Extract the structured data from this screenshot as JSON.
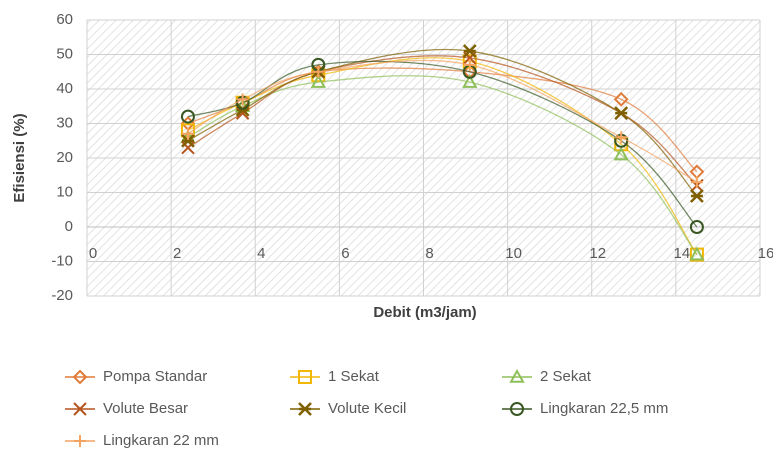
{
  "chart_data": {
    "type": "line",
    "x_label": "Debit (m3/jam)",
    "y_label": "Efisiensi (%)",
    "x": [
      2.4,
      3.7,
      5.5,
      9.1,
      12.7,
      14.5
    ],
    "xlim": [
      0,
      16
    ],
    "xticks": [
      0,
      2,
      4,
      6,
      8,
      10,
      12,
      14,
      16
    ],
    "ylim": [
      -20,
      60
    ],
    "yticks": [
      -20,
      -10,
      0,
      10,
      20,
      30,
      40,
      50,
      60
    ],
    "grid": true,
    "legend": "bottom",
    "series": [
      {
        "name": "Pompa Standar",
        "color": "#e07b39",
        "marker": "diamond",
        "values": [
          30,
          36,
          45,
          45,
          37,
          16
        ]
      },
      {
        "name": "1 Sekat",
        "color": "#f2b705",
        "marker": "square",
        "values": [
          28,
          36,
          44,
          48,
          24,
          -8
        ]
      },
      {
        "name": "2 Sekat",
        "color": "#8fbf5a",
        "marker": "triangle",
        "values": [
          26,
          35,
          42,
          42,
          21,
          -8
        ]
      },
      {
        "name": "Volute Besar",
        "color": "#b5541c",
        "marker": "x",
        "values": [
          23,
          33,
          45,
          49,
          33,
          12
        ]
      },
      {
        "name": "Volute Kecil",
        "color": "#7f6000",
        "marker": "star",
        "values": [
          25,
          34,
          45,
          51,
          33,
          9
        ]
      },
      {
        "name": "Lingkaran 22,5 mm",
        "color": "#385723",
        "marker": "circle",
        "values": [
          32,
          36,
          47,
          45,
          25,
          0
        ]
      },
      {
        "name": "Lingkaran 22 mm",
        "color": "#f4a460",
        "marker": "plus",
        "values": [
          27,
          37,
          45,
          47,
          26,
          13
        ]
      }
    ]
  }
}
